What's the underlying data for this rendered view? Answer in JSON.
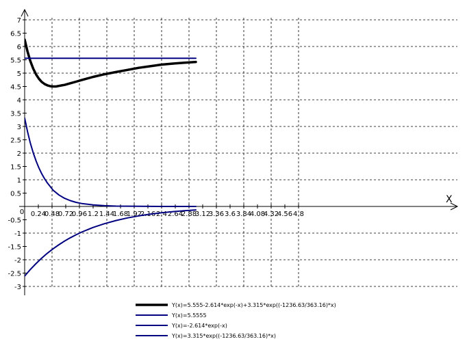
{
  "chart_data": {
    "type": "line",
    "title": "",
    "xlabel": "X",
    "ylabel": "",
    "xlim": [
      0,
      5.04
    ],
    "ylim": [
      -3.4,
      7.4
    ],
    "grid": true,
    "grid_style": "dashed",
    "legend_position": "bottom-center",
    "x_ticks": [
      "0.24",
      "0.48",
      "0.72",
      "0.96",
      "1.2",
      "1.44",
      "1.68",
      "1.92",
      "2.16",
      "2.4",
      "2.64",
      "2.88",
      "3.12",
      "3.36",
      "3.6",
      "3.84",
      "4.08",
      "4.32",
      "4.56",
      "4.8"
    ],
    "x_tick_values": [
      0.24,
      0.48,
      0.72,
      0.96,
      1.2,
      1.44,
      1.68,
      1.92,
      2.16,
      2.4,
      2.64,
      2.88,
      3.12,
      3.36,
      3.6,
      3.84,
      4.08,
      4.32,
      4.56,
      4.8
    ],
    "x_origin_label": "0",
    "y_ticks": [
      "7",
      "6.5",
      "6",
      "5.5",
      "5",
      "4.5",
      "4",
      "3.5",
      "3",
      "2.5",
      "2",
      "1.5",
      "1",
      "0.5",
      "-0.5",
      "-1",
      "-1.5",
      "-2",
      "-2.5",
      "-3"
    ],
    "y_tick_values": [
      7,
      6.5,
      6,
      5.5,
      5,
      4.5,
      4,
      3.5,
      3,
      2.5,
      2,
      1.5,
      1,
      0.5,
      -0.5,
      -1,
      -1.5,
      -2,
      -2.5,
      -3
    ],
    "x_range": [
      0,
      3.0
    ],
    "series": [
      {
        "name": "Y(x)=5.555-2.614*exp(-x)+3.315*exp((-1236.63/363.16)*x)",
        "color": "#000000",
        "width": 3.5,
        "x": [
          0,
          0.05,
          0.1,
          0.15,
          0.2,
          0.25,
          0.3,
          0.35,
          0.4,
          0.45,
          0.5,
          0.55,
          0.6,
          0.65,
          0.7,
          0.8,
          0.9,
          1.0,
          1.2,
          1.4,
          1.6,
          1.8,
          2.0,
          2.2,
          2.4,
          2.6,
          2.8,
          3.0
        ],
        "y": [
          6.26,
          5.81,
          5.45,
          5.17,
          4.95,
          4.79,
          4.67,
          4.59,
          4.54,
          4.51,
          4.5,
          4.5,
          4.52,
          4.54,
          4.56,
          4.62,
          4.68,
          4.74,
          4.86,
          4.96,
          5.04,
          5.12,
          5.2,
          5.26,
          5.32,
          5.36,
          5.39,
          5.42
        ]
      },
      {
        "name": "Y(x)=5.5555",
        "color": "#000080",
        "width": 2,
        "x": [
          0,
          3.0
        ],
        "y": [
          5.5555,
          5.5555
        ]
      },
      {
        "name": "Y(x)=-2.614*exp(-x)",
        "color": "#000080",
        "width": 2,
        "x": [
          0,
          0.1,
          0.2,
          0.3,
          0.4,
          0.5,
          0.6,
          0.7,
          0.8,
          0.9,
          1.0,
          1.2,
          1.4,
          1.6,
          1.8,
          2.0,
          2.2,
          2.4,
          2.6,
          2.8,
          3.0
        ],
        "y": [
          -2.614,
          -2.365,
          -2.14,
          -1.936,
          -1.752,
          -1.585,
          -1.435,
          -1.298,
          -1.175,
          -1.063,
          -0.962,
          -0.787,
          -0.645,
          -0.528,
          -0.432,
          -0.354,
          -0.29,
          -0.237,
          -0.194,
          -0.159,
          -0.13
        ]
      },
      {
        "name": "Y(x)=3.315*exp((-1236.63/363.16)*x)",
        "color": "#000080",
        "width": 2,
        "x": [
          0,
          0.05,
          0.1,
          0.15,
          0.2,
          0.25,
          0.3,
          0.35,
          0.4,
          0.5,
          0.6,
          0.7,
          0.8,
          0.9,
          1.0,
          1.2,
          1.4,
          1.6,
          2.0,
          2.4,
          2.8,
          3.0
        ],
        "y": [
          3.315,
          2.808,
          2.378,
          2.014,
          1.706,
          1.445,
          1.224,
          1.036,
          0.878,
          0.604,
          0.43,
          0.306,
          0.218,
          0.155,
          0.11,
          0.056,
          0.028,
          0.014,
          0.004,
          0.001,
          0.0,
          0.0
        ]
      }
    ]
  }
}
